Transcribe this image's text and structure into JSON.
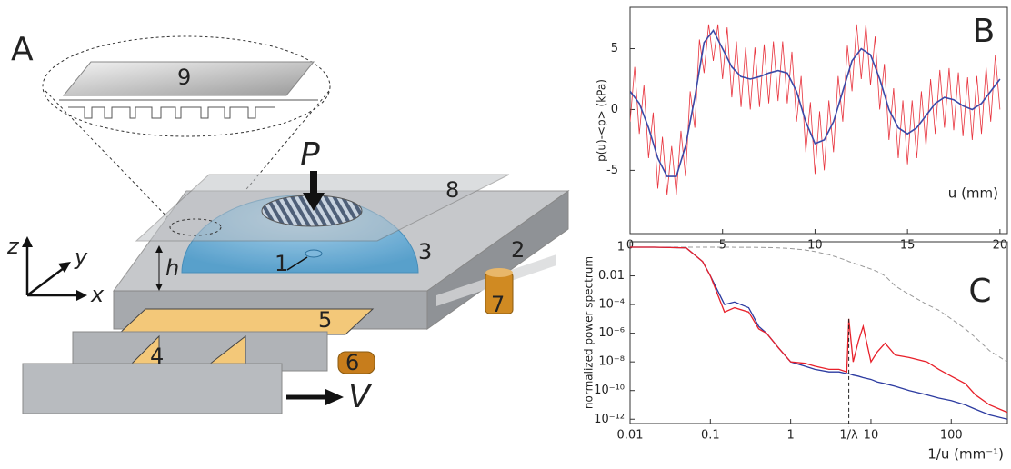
{
  "diagram": {
    "panel_label": "A",
    "part_labels": [
      "9",
      "8",
      "2",
      "3",
      "1",
      "7",
      "5",
      "4",
      "6"
    ],
    "force_label": "P",
    "velocity_label": "V",
    "height_label": "h",
    "axes": [
      "z",
      "y",
      "x"
    ]
  },
  "chart_data": [
    {
      "type": "line",
      "panel_label": "B",
      "ylabel": "p(u)-<p> (kPa)",
      "xlabel": "u (mm)",
      "xlim": [
        0,
        20.4
      ],
      "ylim": [
        -10.2,
        8.4
      ],
      "xticks": [
        0,
        5,
        10,
        15,
        20
      ],
      "yticks": [
        -5,
        0,
        5
      ],
      "series": [
        {
          "color": "#e8323c",
          "width": 0.8,
          "x": [
            0,
            0.25,
            0.5,
            0.75,
            1,
            1.25,
            1.5,
            1.75,
            2,
            2.25,
            2.5,
            2.75,
            3,
            3.25,
            3.5,
            3.75,
            4,
            4.25,
            4.5,
            4.75,
            5,
            5.25,
            5.5,
            5.75,
            6,
            6.25,
            6.5,
            6.75,
            7,
            7.25,
            7.5,
            7.75,
            8,
            8.25,
            8.5,
            8.75,
            9,
            9.25,
            9.5,
            9.75,
            10,
            10.25,
            10.5,
            10.75,
            11,
            11.25,
            11.5,
            11.75,
            12,
            12.25,
            12.5,
            12.75,
            13,
            13.25,
            13.5,
            13.75,
            14,
            14.25,
            14.5,
            14.75,
            15,
            15.25,
            15.5,
            15.75,
            16,
            16.25,
            16.5,
            16.75,
            17,
            17.25,
            17.5,
            17.75,
            18,
            18.25,
            18.5,
            18.75,
            19,
            19.25,
            19.5,
            19.75,
            20
          ],
          "values": [
            -1,
            3.5,
            -2,
            2,
            -4,
            -0.25,
            -6.5,
            -2.25,
            -7,
            -3,
            -7,
            -1.75,
            -5.5,
            1.5,
            -1.5,
            5.75,
            3,
            7,
            4,
            7,
            2.5,
            6.75,
            1,
            5.6,
            0.2,
            5.1,
            0,
            5.1,
            0.2,
            5.35,
            0.5,
            5.6,
            0.7,
            5.6,
            0.5,
            4.75,
            -1,
            2.75,
            -3.5,
            0.6,
            -5.3,
            -0.15,
            -5,
            0.75,
            -3.5,
            2.75,
            -1,
            5.25,
            1.5,
            7,
            2.5,
            7,
            2,
            6,
            0,
            3.75,
            -2.5,
            1.75,
            -4,
            0.75,
            -4.5,
            0.75,
            -4,
            1.5,
            -3,
            2.5,
            -2,
            3.25,
            -1.5,
            3.4,
            -1.7,
            3.05,
            -2.2,
            2.65,
            -2.5,
            2.75,
            -2,
            3.5,
            -1,
            4.5,
            0
          ]
        },
        {
          "color": "#3a49a8",
          "width": 1.6,
          "x": [
            0,
            0.5,
            1,
            1.5,
            2,
            2.5,
            3,
            3.5,
            4,
            4.5,
            5,
            5.5,
            6,
            6.5,
            7,
            7.5,
            8,
            8.5,
            9,
            9.5,
            10,
            10.5,
            11,
            11.5,
            12,
            12.5,
            13,
            13.5,
            14,
            14.5,
            15,
            15.5,
            16,
            16.5,
            17,
            17.5,
            18,
            18.5,
            19,
            19.5,
            20
          ],
          "values": [
            1.5,
            0.5,
            -1.5,
            -4,
            -5.5,
            -5.5,
            -3,
            1,
            5.5,
            6.5,
            5,
            3.5,
            2.7,
            2.5,
            2.7,
            3,
            3.2,
            3,
            1.5,
            -1,
            -2.8,
            -2.5,
            -1,
            1.5,
            4,
            5,
            4.5,
            2.5,
            0,
            -1.5,
            -2,
            -1.5,
            -0.5,
            0.5,
            1,
            0.8,
            0.3,
            0,
            0.5,
            1.5,
            2.5
          ]
        }
      ]
    },
    {
      "type": "line",
      "panel_label": "C",
      "ylabel": "normalized power spectrum",
      "xlabel": "1/u (mm⁻¹)",
      "log_x": true,
      "log_y": true,
      "xlim": [
        0.01,
        500
      ],
      "ylim": [
        5e-13,
        2.4
      ],
      "xticks": [
        0.01,
        0.1,
        1,
        10,
        100
      ],
      "yticks": [
        1,
        0.01,
        {
          "value": 0.0001,
          "label": "10⁻⁴"
        },
        {
          "value": 1e-06,
          "label": "10⁻⁶"
        },
        {
          "value": 1e-08,
          "label": "10⁻⁸"
        },
        {
          "value": 1e-10,
          "label": "10⁻¹⁰"
        },
        {
          "value": 1e-12,
          "label": "10⁻¹²"
        }
      ],
      "annotations": [
        {
          "text": "1/λ",
          "x": 5.3,
          "y": 1e-05
        }
      ],
      "series": [
        {
          "color": "#999999",
          "width": 1,
          "dash": true,
          "x": [
            0.01,
            0.02,
            0.05,
            0.08,
            0.1,
            0.15,
            0.2,
            0.3,
            0.4,
            0.5,
            0.7,
            1,
            1.5,
            2,
            3,
            4,
            5,
            5.3,
            6,
            7,
            8,
            10,
            12,
            15,
            20,
            30,
            50,
            70,
            100,
            150,
            200,
            300,
            500
          ],
          "values": [
            1,
            1,
            1,
            1,
            1,
            1,
            0.99,
            0.98,
            0.97,
            0.95,
            0.9,
            0.8,
            0.65,
            0.5,
            0.3,
            0.18,
            0.12,
            0.1,
            0.08,
            0.06,
            0.045,
            0.03,
            0.02,
            0.01,
            0.002,
            0.0005,
            0.0001,
            4e-05,
            1e-05,
            2e-06,
            5e-07,
            6e-08,
            1e-08
          ]
        },
        {
          "color": "#2b3aa0",
          "width": 1.3,
          "x": [
            0.01,
            0.02,
            0.05,
            0.08,
            0.1,
            0.15,
            0.2,
            0.3,
            0.4,
            0.5,
            0.7,
            1,
            1.5,
            2,
            3,
            4,
            5,
            5.3,
            6,
            7,
            8,
            10,
            12,
            15,
            20,
            30,
            50,
            70,
            100,
            150,
            200,
            300,
            500
          ],
          "values": [
            1,
            1,
            0.9,
            0.1,
            0.01,
            0.0001,
            0.00015,
            6e-05,
            3e-06,
            1e-06,
            1e-07,
            1e-08,
            5e-09,
            3e-09,
            2e-09,
            2e-09,
            1.5e-09,
            1.5e-09,
            1.2e-09,
            1e-09,
            8e-10,
            6e-10,
            4e-10,
            3e-10,
            2e-10,
            1e-10,
            5e-11,
            3e-11,
            2e-11,
            1e-11,
            5e-12,
            2e-12,
            1e-12
          ]
        },
        {
          "color": "#e8202a",
          "width": 1.3,
          "x": [
            0.01,
            0.02,
            0.05,
            0.08,
            0.1,
            0.15,
            0.2,
            0.3,
            0.4,
            0.5,
            0.7,
            1,
            1.5,
            2,
            3,
            4,
            5,
            5.3,
            6,
            7,
            8,
            10,
            12,
            15,
            20,
            30,
            50,
            70,
            100,
            150,
            200,
            300,
            500
          ],
          "values": [
            1,
            1,
            0.9,
            0.1,
            0.01,
            3e-05,
            6e-05,
            3e-05,
            2e-06,
            1e-06,
            1e-07,
            1e-08,
            8e-09,
            5e-09,
            3e-09,
            3e-09,
            2e-09,
            1e-05,
            1e-08,
            3e-07,
            3e-06,
            1e-08,
            5e-08,
            2e-07,
            3e-08,
            2e-08,
            1e-08,
            3e-09,
            1e-09,
            3e-10,
            5e-11,
            1e-11,
            3e-12
          ]
        }
      ]
    }
  ]
}
